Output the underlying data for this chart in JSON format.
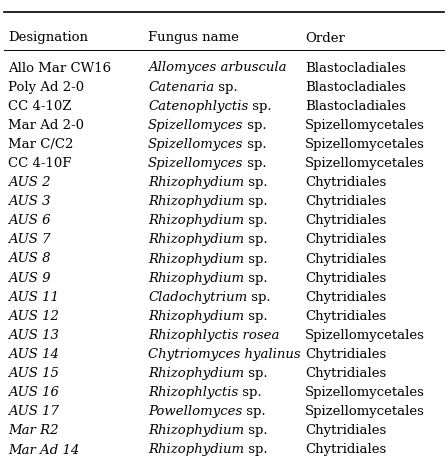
{
  "col_headers": [
    "Designation",
    "Fungus name",
    "Order"
  ],
  "rows": [
    {
      "desig": "Allo Mar CW16",
      "desig_italic": false,
      "fungus_italic": "Allomyces arbuscula",
      "fungus_roman": "",
      "order": "Blastocladiales"
    },
    {
      "desig": "Poly Ad 2-0",
      "desig_italic": false,
      "fungus_italic": "Catenaria",
      "fungus_roman": " sp.",
      "order": "Blastocladiales"
    },
    {
      "desig": "CC 4-10Z",
      "desig_italic": false,
      "fungus_italic": "Catenophlyctis",
      "fungus_roman": " sp.",
      "order": "Blastocladiales"
    },
    {
      "desig": "Mar Ad 2-0",
      "desig_italic": false,
      "fungus_italic": "Spizellomyces",
      "fungus_roman": " sp.",
      "order": "Spizellomycetales"
    },
    {
      "desig": "Mar C/C2",
      "desig_italic": false,
      "fungus_italic": "Spizellomyces",
      "fungus_roman": " sp.",
      "order": "Spizellomycetales"
    },
    {
      "desig": "CC 4-10F",
      "desig_italic": false,
      "fungus_italic": "Spizellomyces",
      "fungus_roman": " sp.",
      "order": "Spizellomycetales"
    },
    {
      "desig": "AUS 2",
      "desig_italic": true,
      "fungus_italic": "Rhizophydium",
      "fungus_roman": " sp.",
      "order": "Chytridiales"
    },
    {
      "desig": "AUS 3",
      "desig_italic": true,
      "fungus_italic": "Rhizophydium",
      "fungus_roman": " sp.",
      "order": "Chytridiales"
    },
    {
      "desig": "AUS 6",
      "desig_italic": true,
      "fungus_italic": "Rhizophydium",
      "fungus_roman": " sp.",
      "order": "Chytridiales"
    },
    {
      "desig": "AUS 7",
      "desig_italic": true,
      "fungus_italic": "Rhizophydium",
      "fungus_roman": " sp.",
      "order": "Chytridiales"
    },
    {
      "desig": "AUS 8",
      "desig_italic": true,
      "fungus_italic": "Rhizophydium",
      "fungus_roman": " sp.",
      "order": "Chytridiales"
    },
    {
      "desig": "AUS 9",
      "desig_italic": true,
      "fungus_italic": "Rhizophydium",
      "fungus_roman": " sp.",
      "order": "Chytridiales"
    },
    {
      "desig": "AUS 11",
      "desig_italic": true,
      "fungus_italic": "Cladochytrium",
      "fungus_roman": " sp.",
      "order": "Chytridiales"
    },
    {
      "desig": "AUS 12",
      "desig_italic": true,
      "fungus_italic": "Rhizophydium",
      "fungus_roman": " sp.",
      "order": "Chytridiales"
    },
    {
      "desig": "AUS 13",
      "desig_italic": true,
      "fungus_italic": "Rhizophlyctis rosea",
      "fungus_roman": "",
      "order": "Spizellomycetales"
    },
    {
      "desig": "AUS 14",
      "desig_italic": true,
      "fungus_italic": "Chytriomyces hyalinus",
      "fungus_roman": "",
      "order": "Chytridiales"
    },
    {
      "desig": "AUS 15",
      "desig_italic": true,
      "fungus_italic": "Rhizophydium",
      "fungus_roman": " sp.",
      "order": "Chytridiales"
    },
    {
      "desig": "AUS 16",
      "desig_italic": true,
      "fungus_italic": "Rhizophlyctis",
      "fungus_roman": " sp.",
      "order": "Spizellomycetales"
    },
    {
      "desig": "AUS 17",
      "desig_italic": true,
      "fungus_italic": "Powellomyces",
      "fungus_roman": " sp.",
      "order": "Spizellomycetales"
    },
    {
      "desig": "Mar R2",
      "desig_italic": true,
      "fungus_italic": "Rhizophydium",
      "fungus_roman": " sp.",
      "order": "Chytridiales"
    },
    {
      "desig": "Mar Ad 14",
      "desig_italic": true,
      "fungus_italic": "Rhizophydium",
      "fungus_roman": " sp.",
      "order": "Chytridiales"
    }
  ],
  "bg_color": "#ffffff",
  "text_color": "#000000",
  "figsize": [
    4.48,
    4.62
  ],
  "dpi": 100
}
